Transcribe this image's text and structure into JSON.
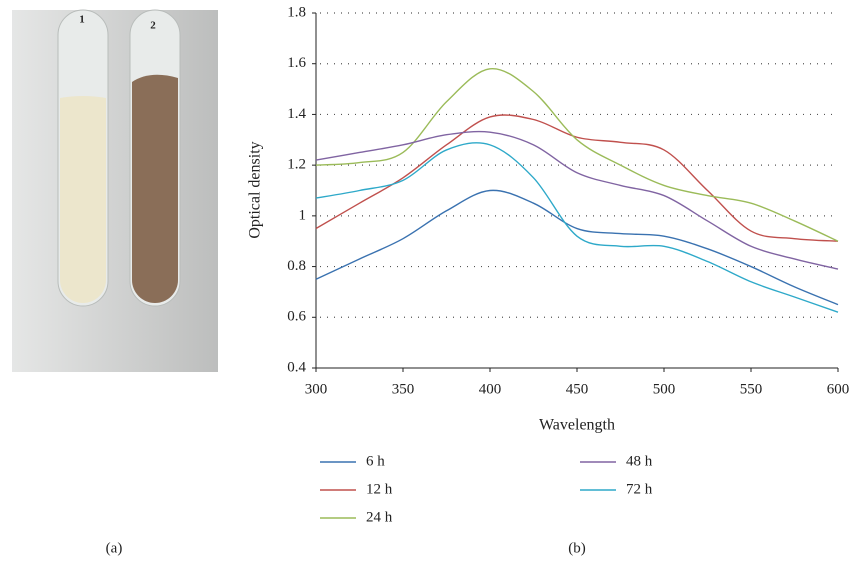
{
  "panel_labels": [
    "(a)",
    "(b)"
  ],
  "photo": {
    "tube_labels": [
      "1",
      "2"
    ]
  },
  "chart_data": {
    "type": "line",
    "x_label": "Wavelength",
    "y_label": "Optical density",
    "x": [
      300,
      325,
      350,
      375,
      400,
      425,
      450,
      475,
      500,
      525,
      550,
      575,
      600
    ],
    "xlim": [
      300,
      600
    ],
    "xticks": [
      300,
      350,
      400,
      450,
      500,
      550,
      600
    ],
    "ylim": [
      0.4,
      1.8
    ],
    "yticks": [
      0.4,
      0.6,
      0.8,
      1,
      1.2,
      1.4,
      1.6,
      1.8
    ],
    "grid": true,
    "series": [
      {
        "name": "6 h",
        "color": "#3a72b0",
        "values": [
          0.75,
          0.83,
          0.91,
          1.02,
          1.1,
          1.05,
          0.95,
          0.93,
          0.92,
          0.87,
          0.8,
          0.72,
          0.65
        ]
      },
      {
        "name": "12 h",
        "color": "#c0504d",
        "values": [
          0.95,
          1.05,
          1.15,
          1.28,
          1.39,
          1.38,
          1.31,
          1.29,
          1.26,
          1.1,
          0.94,
          0.91,
          0.9
        ]
      },
      {
        "name": "24 h",
        "color": "#9bbb59",
        "values": [
          1.2,
          1.21,
          1.25,
          1.45,
          1.58,
          1.49,
          1.3,
          1.2,
          1.12,
          1.08,
          1.05,
          0.98,
          0.9
        ]
      },
      {
        "name": "48 h",
        "color": "#8064a2",
        "values": [
          1.22,
          1.25,
          1.28,
          1.32,
          1.33,
          1.28,
          1.17,
          1.12,
          1.08,
          0.98,
          0.88,
          0.83,
          0.79
        ]
      },
      {
        "name": "72 h",
        "color": "#2ea9c9",
        "values": [
          1.07,
          1.1,
          1.14,
          1.26,
          1.28,
          1.15,
          0.92,
          0.88,
          0.88,
          0.82,
          0.74,
          0.68,
          0.62
        ]
      }
    ]
  }
}
